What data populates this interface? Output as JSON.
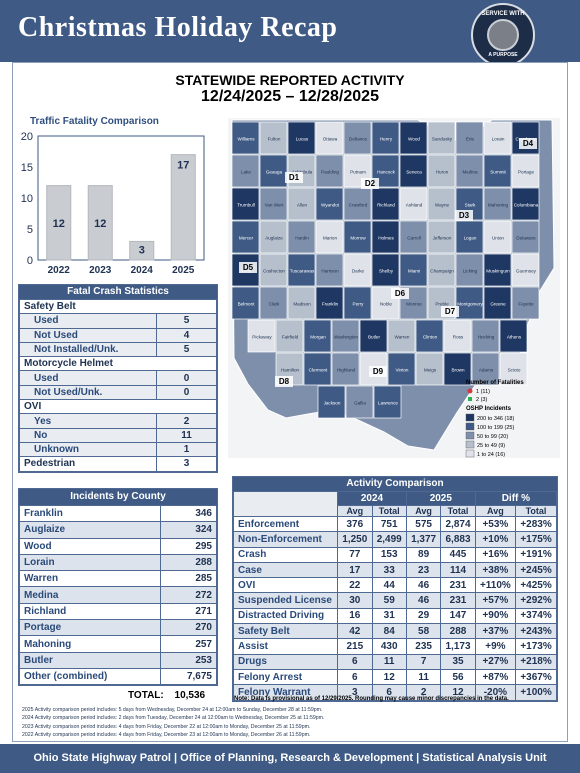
{
  "header": {
    "title": "Christmas Holiday Recap",
    "seal_text_top": "SERVICE WITH",
    "seal_text_bottom": "A PURPOSE"
  },
  "report": {
    "title": "STATEWIDE REPORTED ACTIVITY",
    "date_range": "12/24/2025 – 12/28/2025"
  },
  "chart_data": {
    "type": "bar",
    "title": "Traffic Fatality Comparison",
    "categories": [
      "2022",
      "2023",
      "2024",
      "2025"
    ],
    "values": [
      12,
      12,
      3,
      17
    ],
    "ylim": [
      0,
      20
    ],
    "yticks": [
      0,
      5,
      10,
      15,
      20
    ],
    "grid": false,
    "bar_color": "#c9ccd1",
    "highlight_color": "#c9ccd1"
  },
  "map": {
    "districts": [
      "D1",
      "D2",
      "D3",
      "D4",
      "D5",
      "D6",
      "D7",
      "D8",
      "D9"
    ],
    "legend": {
      "fatalities_title": "Number of Fatalities",
      "fatalities": [
        {
          "label": "1  (11)",
          "color": "#d23a3a"
        },
        {
          "label": "2  (3)",
          "color": "#2bb24c"
        }
      ],
      "incidents_title": "OSHP Incidents",
      "incidents": [
        {
          "label": "200 to  346  (18)",
          "color": "#1f3763"
        },
        {
          "label": "100 to  199  (25)",
          "color": "#3e5a85"
        },
        {
          "label": "50 to    99  (20)",
          "color": "#7d8fab"
        },
        {
          "label": "25 to    49    (9)",
          "color": "#b6bfcc"
        },
        {
          "label": "1 to    24  (16)",
          "color": "#dfe3e9"
        }
      ]
    },
    "county_labels": [
      [
        "Williams",
        "Fulton",
        "Lucas",
        "Ottawa",
        "Defiance",
        "Henry",
        "Wood",
        "Sandusky",
        "Erie",
        "Lorain",
        "Cuyahoga",
        "Lake",
        "Geauga",
        "Ashtabula",
        "Paulding",
        "Putnam",
        "Hancock",
        "Seneca",
        "Huron",
        "Medina",
        "Summit",
        "Portage",
        "Trumbull",
        "Van Wert",
        "Allen",
        "Wyandot",
        "Crawford",
        "Richland",
        "Ashland",
        "Wayne",
        "Stark",
        "Mahoning",
        "Columbiana",
        "Mercer",
        "Auglaize",
        "Hardin",
        "Marion",
        "Morrow",
        "Holmes",
        "Carroll",
        "Jefferson",
        "Logan",
        "Union",
        "Delaware",
        "Knox",
        "Coshocton",
        "Tuscarawas",
        "Harrison",
        "Darke",
        "Shelby",
        "Miami",
        "Champaign",
        "Licking",
        "Muskingum",
        "Guernsey",
        "Belmont",
        "Clark",
        "Madison",
        "Franklin",
        "Perry",
        "Noble",
        "Monroe",
        "Preble",
        "Montgomery",
        "Greene",
        "Fayette",
        "Pickaway",
        "Fairfield",
        "Morgan",
        "Washington",
        "Butler",
        "Warren",
        "Clinton",
        "Ross",
        "Hocking",
        "Athens",
        "Hamilton",
        "Clermont",
        "Highland",
        "Pike",
        "Vinton",
        "Meigs",
        "Brown",
        "Adams",
        "Scioto",
        "Jackson",
        "Gallia",
        "Lawrence"
      ]
    ]
  },
  "fatal_crash": {
    "title": "Fatal Crash Statistics",
    "sections": [
      {
        "label": "Safety Belt",
        "rows": [
          {
            "label": "Used",
            "value": "5"
          },
          {
            "label": "Not Used",
            "value": "4"
          },
          {
            "label": "Not Installed/Unk.",
            "value": "5"
          }
        ]
      },
      {
        "label": "Motorcycle Helmet",
        "rows": [
          {
            "label": "Used",
            "value": "0"
          },
          {
            "label": "Not Used/Unk.",
            "value": "0"
          }
        ]
      },
      {
        "label": "OVI",
        "rows": [
          {
            "label": "Yes",
            "value": "2"
          },
          {
            "label": "No",
            "value": "11"
          },
          {
            "label": "Unknown",
            "value": "1"
          }
        ]
      }
    ],
    "pedestrian": {
      "label": "Pedestrian",
      "value": "3"
    }
  },
  "incidents_by_county": {
    "title": "Incidents by County",
    "rows": [
      {
        "county": "Franklin",
        "value": "346"
      },
      {
        "county": "Auglaize",
        "value": "324"
      },
      {
        "county": "Wood",
        "value": "295"
      },
      {
        "county": "Lorain",
        "value": "288"
      },
      {
        "county": "Warren",
        "value": "285"
      },
      {
        "county": "Medina",
        "value": "272"
      },
      {
        "county": "Richland",
        "value": "271"
      },
      {
        "county": "Portage",
        "value": "270"
      },
      {
        "county": "Mahoning",
        "value": "257"
      },
      {
        "county": "Butler",
        "value": "253"
      },
      {
        "county": "Other (combined)",
        "value": "7,675"
      }
    ],
    "total_label": "TOTAL:",
    "total_value": "10,536"
  },
  "activity": {
    "title": "Activity Comparison",
    "years": [
      "2024",
      "2025"
    ],
    "diff_label": "Diff %",
    "sub_headers": [
      "Avg",
      "Total",
      "Avg",
      "Total",
      "Avg",
      "Total"
    ],
    "rows": [
      {
        "category": "Enforcement",
        "a24": "376",
        "t24": "751",
        "a25": "575",
        "t25": "2,874",
        "da": "+53%",
        "dt": "+283%"
      },
      {
        "category": "Non-Enforcement",
        "a24": "1,250",
        "t24": "2,499",
        "a25": "1,377",
        "t25": "6,883",
        "da": "+10%",
        "dt": "+175%"
      },
      {
        "category": "Crash",
        "a24": "77",
        "t24": "153",
        "a25": "89",
        "t25": "445",
        "da": "+16%",
        "dt": "+191%"
      },
      {
        "category": "Case",
        "a24": "17",
        "t24": "33",
        "a25": "23",
        "t25": "114",
        "da": "+38%",
        "dt": "+245%"
      },
      {
        "category": "OVI",
        "a24": "22",
        "t24": "44",
        "a25": "46",
        "t25": "231",
        "da": "+110%",
        "dt": "+425%"
      },
      {
        "category": "Suspended License",
        "a24": "30",
        "t24": "59",
        "a25": "46",
        "t25": "231",
        "da": "+57%",
        "dt": "+292%"
      },
      {
        "category": "Distracted Driving",
        "a24": "16",
        "t24": "31",
        "a25": "29",
        "t25": "147",
        "da": "+90%",
        "dt": "+374%"
      },
      {
        "category": "Safety Belt",
        "a24": "42",
        "t24": "84",
        "a25": "58",
        "t25": "288",
        "da": "+37%",
        "dt": "+243%"
      },
      {
        "category": "Assist",
        "a24": "215",
        "t24": "430",
        "a25": "235",
        "t25": "1,173",
        "da": "+9%",
        "dt": "+173%"
      },
      {
        "category": "Drugs",
        "a24": "6",
        "t24": "11",
        "a25": "7",
        "t25": "35",
        "da": "+27%",
        "dt": "+218%"
      },
      {
        "category": "Felony Arrest",
        "a24": "6",
        "t24": "12",
        "a25": "11",
        "t25": "56",
        "da": "+87%",
        "dt": "+367%"
      },
      {
        "category": "Felony Warrant",
        "a24": "3",
        "t24": "6",
        "a25": "2",
        "t25": "12",
        "da": "-20%",
        "dt": "+100%"
      }
    ],
    "note": "Note: Data is provisional as of 12/29/2025. Rounding may cause minor discrepancies in the data."
  },
  "footnotes": [
    "2025 Activity comparison period includes: 5 days from Wednesday, December 24 at 12:00am to Sunday, December 28 at 11:59pm.",
    "2024 Activity comparison period includes: 2 days from Tuesday, December 24 at 12:00am to Wednesday, December 25 at 11:59pm.",
    "2023 Activity comparison period includes: 4 days from Friday, December 22 at 12:00am to Monday, December 25 at 11:59pm.",
    "2022 Activity comparison period includes: 4 days from Friday, December 23 at 12:00am to Monday, December 26 at 11:59pm."
  ],
  "footer": {
    "text": "Ohio State Highway Patrol  |  Office of Planning, Research & Development  |  Statistical Analysis Unit"
  }
}
